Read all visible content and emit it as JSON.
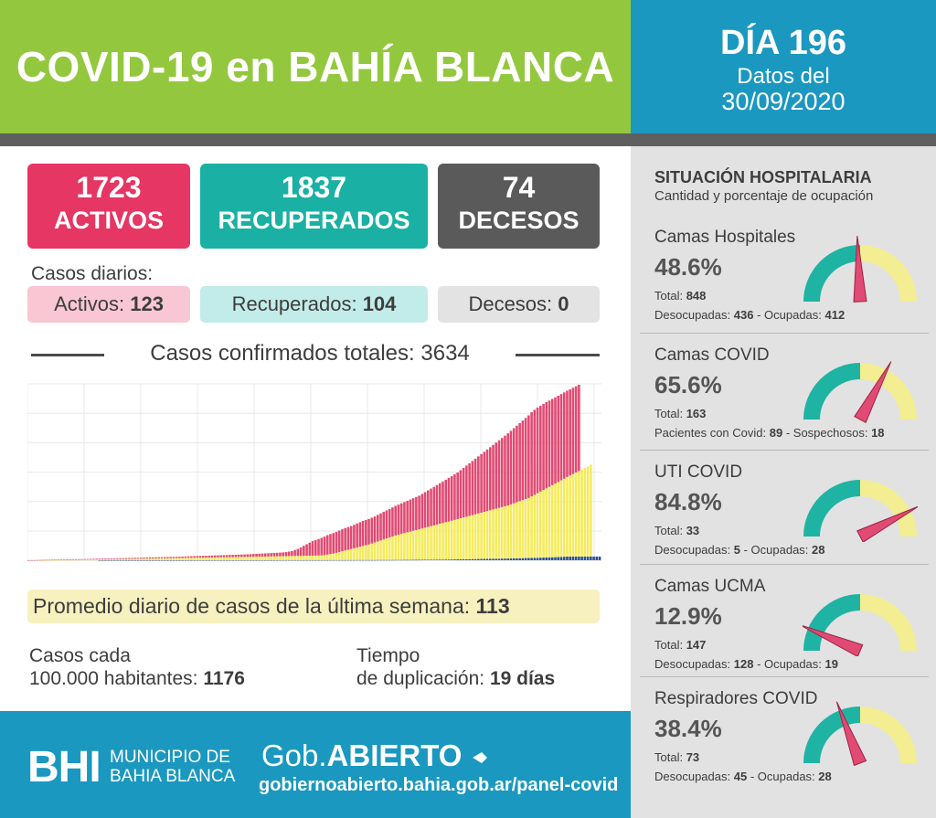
{
  "header": {
    "title": "COVID-19 en BAHÍA BLANCA",
    "day": "DÍA 196",
    "datos_label": "Datos del",
    "date": "30/09/2020"
  },
  "stats": {
    "activos": {
      "value": "1723",
      "label": "ACTIVOS"
    },
    "recuperados": {
      "value": "1837",
      "label": "RECUPERADOS"
    },
    "decesos": {
      "value": "74",
      "label": "DECESOS"
    }
  },
  "daily": {
    "title": "Casos diarios:",
    "activos_label": "Activos:",
    "activos_value": "123",
    "recuperados_label": "Recuperados:",
    "recuperados_value": "104",
    "decesos_label": "Decesos:",
    "decesos_value": "0"
  },
  "confirmed": {
    "title": "Casos confirmados totales:",
    "value": "3634"
  },
  "chart_data": {
    "type": "bar",
    "stacked": true,
    "title": "",
    "xlabel": "",
    "ylabel": "",
    "grid": true,
    "series": [
      {
        "values": [
          0,
          0,
          0,
          0,
          0,
          0,
          0,
          0,
          0,
          0,
          0,
          0,
          0,
          0,
          0,
          0,
          0,
          0,
          0,
          0,
          0,
          0,
          0,
          0,
          1,
          1,
          1,
          1,
          1,
          1,
          1,
          1,
          1,
          1,
          1,
          1,
          1,
          1,
          1,
          1,
          1,
          1,
          1,
          1,
          1,
          1,
          1,
          1,
          1,
          1,
          1,
          1,
          1,
          2,
          2,
          2,
          2,
          2,
          2,
          2,
          2,
          2,
          2,
          2,
          2,
          2,
          2,
          2,
          2,
          2,
          2,
          2,
          2,
          2,
          2,
          2,
          2,
          2,
          2,
          2,
          2,
          2,
          2,
          2,
          2,
          3,
          3,
          3,
          3,
          3,
          3,
          3,
          3,
          3,
          3,
          3,
          3,
          3,
          3,
          3,
          3,
          3,
          4,
          4,
          4,
          4,
          4,
          4,
          4,
          4,
          4,
          5,
          5,
          5,
          5,
          5,
          5,
          5,
          6,
          6,
          6,
          6,
          6,
          6,
          7,
          7,
          7,
          8,
          8,
          8,
          9,
          9,
          10,
          10,
          11,
          11,
          12,
          12,
          13,
          14,
          14,
          15,
          15,
          16,
          17,
          18,
          19,
          20,
          21,
          22,
          23,
          24,
          25,
          26,
          27,
          28,
          29,
          30,
          31,
          32,
          33,
          34,
          35,
          36,
          38,
          39,
          41,
          42,
          44,
          45,
          47,
          48,
          50,
          52,
          54,
          56,
          58,
          60,
          62,
          65,
          68,
          71,
          74,
          74,
          74,
          74,
          74,
          74,
          74,
          74,
          74,
          74,
          74,
          74
        ]
      },
      {
        "values": [
          0,
          0,
          0,
          0,
          1,
          1,
          2,
          2,
          3,
          3,
          4,
          4,
          5,
          6,
          7,
          8,
          9,
          10,
          11,
          12,
          13,
          14,
          15,
          16,
          17,
          18,
          19,
          20,
          21,
          22,
          23,
          24,
          25,
          26,
          27,
          28,
          29,
          30,
          31,
          32,
          33,
          34,
          35,
          36,
          37,
          38,
          39,
          40,
          41,
          42,
          43,
          44,
          45,
          46,
          47,
          48,
          49,
          50,
          51,
          52,
          53,
          54,
          55,
          56,
          57,
          58,
          59,
          60,
          61,
          62,
          63,
          64,
          65,
          66,
          67,
          68,
          69,
          70,
          71,
          72,
          73,
          74,
          75,
          76,
          77,
          78,
          79,
          80,
          81,
          82,
          83,
          84,
          85,
          86,
          87,
          88,
          89,
          90,
          92,
          95,
          100,
          110,
          120,
          130,
          145,
          160,
          175,
          190,
          205,
          220,
          235,
          250,
          265,
          280,
          295,
          310,
          330,
          350,
          370,
          390,
          410,
          430,
          450,
          470,
          490,
          505,
          520,
          535,
          550,
          565,
          580,
          595,
          610,
          625,
          640,
          655,
          670,
          685,
          700,
          715,
          730,
          745,
          760,
          775,
          790,
          805,
          820,
          835,
          850,
          865,
          880,
          895,
          910,
          925,
          940,
          955,
          970,
          985,
          1000,
          1015,
          1030,
          1045,
          1060,
          1080,
          1100,
          1120,
          1140,
          1160,
          1180,
          1200,
          1230,
          1260,
          1290,
          1320,
          1350,
          1380,
          1410,
          1440,
          1470,
          1500,
          1530,
          1560,
          1590,
          1620,
          1650,
          1680,
          1710,
          1740,
          1770,
          1800,
          1837
        ]
      },
      {
        "values": [
          1,
          2,
          3,
          4,
          5,
          6,
          6,
          7,
          7,
          8,
          8,
          9,
          9,
          10,
          10,
          10,
          11,
          11,
          12,
          12,
          12,
          13,
          13,
          14,
          14,
          14,
          15,
          15,
          16,
          16,
          16,
          17,
          17,
          18,
          18,
          18,
          19,
          19,
          20,
          20,
          20,
          21,
          21,
          22,
          22,
          22,
          23,
          23,
          24,
          24,
          25,
          26,
          27,
          28,
          29,
          30,
          31,
          32,
          33,
          34,
          35,
          36,
          37,
          38,
          39,
          40,
          41,
          42,
          43,
          44,
          45,
          46,
          47,
          48,
          50,
          52,
          54,
          56,
          58,
          60,
          62,
          64,
          66,
          68,
          70,
          72,
          75,
          80,
          90,
          100,
          120,
          140,
          170,
          200,
          230,
          260,
          290,
          310,
          330,
          350,
          370,
          390,
          400,
          410,
          420,
          430,
          440,
          450,
          455,
          460,
          470,
          480,
          490,
          500,
          505,
          510,
          515,
          520,
          530,
          540,
          550,
          560,
          570,
          580,
          590,
          600,
          610,
          620,
          630,
          640,
          650,
          660,
          670,
          690,
          710,
          730,
          750,
          770,
          790,
          810,
          830,
          850,
          870,
          890,
          910,
          930,
          960,
          990,
          1020,
          1050,
          1080,
          1110,
          1140,
          1170,
          1200,
          1230,
          1260,
          1290,
          1320,
          1350,
          1380,
          1410,
          1440,
          1470,
          1500,
          1530,
          1560,
          1590,
          1620,
          1650,
          1680,
          1700,
          1710,
          1715,
          1720,
          1723,
          1723,
          1723,
          1723,
          1723,
          1723,
          1723,
          1723,
          1723,
          1723,
          1723,
          1723
        ]
      }
    ],
    "ylim": [
      0,
      3634
    ],
    "colors": [
      "#2b4f95",
      "#f5eb5e",
      "#e14a72"
    ]
  },
  "promedio": {
    "label": "Promedio diario de casos de la última semana:",
    "value": "113"
  },
  "casos_cada": {
    "line1": "Casos cada",
    "line2_label": "100.000 habitantes:",
    "value": "1176"
  },
  "tiempo": {
    "line1": "Tiempo",
    "line2_label": "de duplicación:",
    "value": "19 días"
  },
  "footer": {
    "bhi_logo": "BHI",
    "muni_line1": "MUNICIPIO DE",
    "muni_line2": "BAHIA BLANCA",
    "gob_prefix": "Gob.",
    "gob_strong": "ABIERTO",
    "url": "gobiernoabierto.bahia.gob.ar/panel-covid"
  },
  "hospital": {
    "title": "SITUACIÓN HOSPITALARIA",
    "subtitle": "Cantidad y porcentaje de ocupación",
    "items": [
      {
        "name": "Camas Hospitales",
        "pct": "48.6%",
        "ratio": 0.486,
        "total_label": "Total:",
        "total": "848",
        "a_label": "Desocupadas:",
        "a": "436",
        "b_label": "Ocupadas:",
        "b": "412"
      },
      {
        "name": "Camas COVID",
        "pct": "65.6%",
        "ratio": 0.656,
        "total_label": "Total:",
        "total": "163",
        "a_label": "Pacientes con Covid:",
        "a": "89",
        "b_label": "Sospechosos:",
        "b": "18"
      },
      {
        "name": "UTI COVID",
        "pct": "84.8%",
        "ratio": 0.848,
        "total_label": "Total:",
        "total": "33",
        "a_label": "Desocupadas:",
        "a": "5",
        "b_label": "Ocupadas:",
        "b": "28"
      },
      {
        "name": "Camas UCMA",
        "pct": "12.9%",
        "ratio": 0.129,
        "total_label": "Total:",
        "total": "147",
        "a_label": "Desocupadas:",
        "a": "128",
        "b_label": "Ocupadas:",
        "b": "19"
      },
      {
        "name": "Respiradores COVID",
        "pct": "38.4%",
        "ratio": 0.384,
        "total_label": "Total:",
        "total": "73",
        "a_label": "Desocupadas:",
        "a": "45",
        "b_label": "Ocupadas:",
        "b": "28"
      }
    ]
  },
  "colors": {
    "green": "#93c83e",
    "blue": "#1a98c0",
    "pink": "#e53664",
    "teal": "#1ab0a4",
    "gray": "#5a5a5a",
    "gauge_teal": "#1fb3a3",
    "gauge_yellow": "#f3ee91",
    "needle": "#e14a72"
  }
}
